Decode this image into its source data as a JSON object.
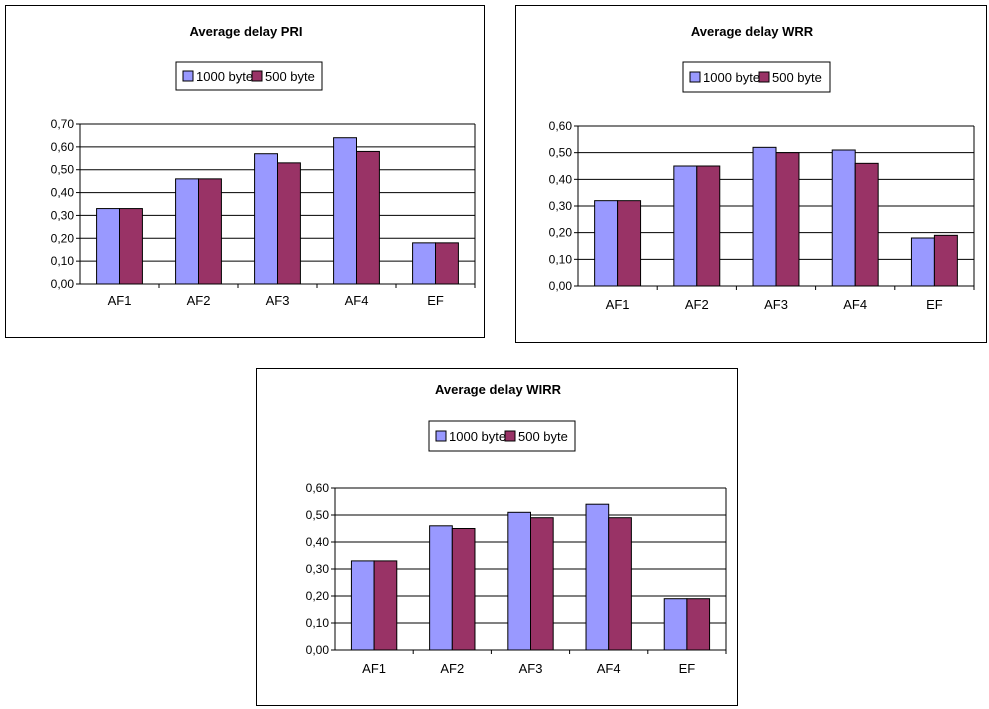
{
  "colors": {
    "series1": "#9999ff",
    "series2": "#993366",
    "axis": "#000000",
    "grid": "#000000",
    "edge": "#000000"
  },
  "chart_data": [
    {
      "type": "bar",
      "title": "Average delay PRI",
      "categories": [
        "AF1",
        "AF2",
        "AF3",
        "AF4",
        "EF"
      ],
      "series": [
        {
          "name": "1000 byte",
          "values": [
            0.33,
            0.46,
            0.57,
            0.64,
            0.18
          ]
        },
        {
          "name": "500 byte",
          "values": [
            0.33,
            0.46,
            0.53,
            0.58,
            0.18
          ]
        }
      ],
      "ylim": [
        0,
        0.7
      ],
      "yticks": [
        "0,00",
        "0,10",
        "0,20",
        "0,30",
        "0,40",
        "0,50",
        "0,60",
        "0,70"
      ],
      "grid": true,
      "legend": "top"
    },
    {
      "type": "bar",
      "title": "Average delay WRR",
      "categories": [
        "AF1",
        "AF2",
        "AF3",
        "AF4",
        "EF"
      ],
      "series": [
        {
          "name": "1000 byte",
          "values": [
            0.32,
            0.45,
            0.52,
            0.51,
            0.18
          ]
        },
        {
          "name": "500 byte",
          "values": [
            0.32,
            0.45,
            0.5,
            0.46,
            0.19
          ]
        }
      ],
      "ylim": [
        0,
        0.6
      ],
      "yticks": [
        "0,00",
        "0,10",
        "0,20",
        "0,30",
        "0,40",
        "0,50",
        "0,60"
      ],
      "grid": true,
      "legend": "top"
    },
    {
      "type": "bar",
      "title": "Average delay WIRR",
      "categories": [
        "AF1",
        "AF2",
        "AF3",
        "AF4",
        "EF"
      ],
      "series": [
        {
          "name": "1000 byte",
          "values": [
            0.33,
            0.46,
            0.51,
            0.54,
            0.19
          ]
        },
        {
          "name": "500 byte",
          "values": [
            0.33,
            0.45,
            0.49,
            0.49,
            0.19
          ]
        }
      ],
      "ylim": [
        0,
        0.6
      ],
      "yticks": [
        "0,00",
        "0,10",
        "0,20",
        "0,30",
        "0,40",
        "0,50",
        "0,60"
      ],
      "grid": true,
      "legend": "top"
    }
  ]
}
